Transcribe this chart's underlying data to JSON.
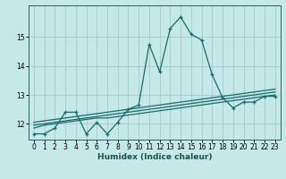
{
  "xlabel": "Humidex (Indice chaleur)",
  "ylabel": "",
  "xlim": [
    -0.5,
    23.5
  ],
  "ylim": [
    11.45,
    16.1
  ],
  "yticks": [
    12,
    13,
    14,
    15
  ],
  "xticks": [
    0,
    1,
    2,
    3,
    4,
    5,
    6,
    7,
    8,
    9,
    10,
    11,
    12,
    13,
    14,
    15,
    16,
    17,
    18,
    19,
    20,
    21,
    22,
    23
  ],
  "background_color": "#c5e8e8",
  "grid_color": "#aacfcf",
  "line_color": "#1a6b6b",
  "line1_x": [
    0,
    1,
    2,
    3,
    4,
    5,
    6,
    7,
    8,
    9,
    10,
    11,
    12,
    13,
    14,
    15,
    16,
    17,
    18,
    19,
    20,
    21,
    22,
    23
  ],
  "line1_y": [
    11.65,
    11.65,
    11.85,
    12.4,
    12.4,
    11.65,
    12.05,
    11.65,
    12.05,
    12.5,
    12.65,
    14.75,
    13.8,
    15.3,
    15.7,
    15.1,
    14.9,
    13.7,
    12.9,
    12.55,
    12.75,
    12.75,
    12.95,
    12.95
  ],
  "line2_x": [
    0,
    1,
    2,
    3,
    4,
    5,
    6,
    7,
    8,
    9,
    10,
    11,
    12,
    13,
    14,
    15,
    16,
    17,
    18,
    19,
    20,
    21,
    22,
    23
  ],
  "line2_y": [
    11.85,
    11.95,
    12.0,
    12.05,
    12.1,
    12.15,
    12.2,
    12.2,
    12.25,
    12.3,
    12.35,
    12.4,
    12.45,
    12.5,
    12.55,
    12.6,
    12.65,
    12.7,
    12.75,
    12.8,
    12.85,
    12.9,
    12.95,
    13.0
  ],
  "line3_x": [
    0,
    1,
    2,
    3,
    4,
    5,
    6,
    7,
    8,
    9,
    10,
    11,
    12,
    13,
    14,
    15,
    16,
    17,
    18,
    19,
    20,
    21,
    22,
    23
  ],
  "line3_y": [
    11.95,
    12.0,
    12.05,
    12.1,
    12.15,
    12.2,
    12.25,
    12.3,
    12.35,
    12.4,
    12.45,
    12.5,
    12.55,
    12.6,
    12.65,
    12.7,
    12.75,
    12.8,
    12.85,
    12.9,
    12.95,
    13.0,
    13.05,
    13.1
  ],
  "line4_x": [
    0,
    1,
    2,
    3,
    4,
    5,
    6,
    7,
    8,
    9,
    10,
    11,
    12,
    13,
    14,
    15,
    16,
    17,
    18,
    19,
    20,
    21,
    22,
    23
  ],
  "line4_y": [
    12.05,
    12.1,
    12.15,
    12.2,
    12.25,
    12.3,
    12.35,
    12.4,
    12.45,
    12.5,
    12.55,
    12.6,
    12.65,
    12.7,
    12.75,
    12.8,
    12.85,
    12.9,
    12.95,
    13.0,
    13.05,
    13.1,
    13.15,
    13.2
  ]
}
